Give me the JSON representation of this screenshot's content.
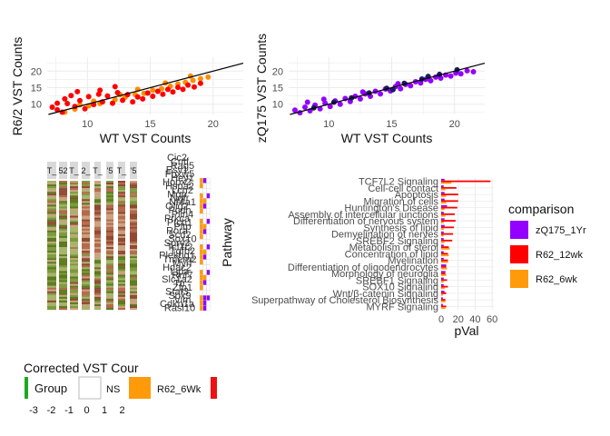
{
  "chart_data": [
    {
      "type": "scatter",
      "xlabel": "WT VST Counts",
      "ylabel": "R6/2 VST Counts",
      "xticks": [
        10,
        15,
        20
      ],
      "yticks": [
        10,
        15,
        20
      ],
      "xlim": [
        6.8,
        22.4
      ],
      "ylim": [
        6.9,
        24.2
      ],
      "reference_line": {
        "slope": 1,
        "intercept": 0
      },
      "series": [
        {
          "color": "#FF8C00",
          "points": [
            [
              8.2,
              7.6
            ],
            [
              9,
              8.5
            ],
            [
              10.1,
              9.5
            ],
            [
              11,
              10.2
            ],
            [
              12.2,
              11.4
            ],
            [
              13,
              12.1
            ],
            [
              13.8,
              12.9
            ],
            [
              14.5,
              13.3
            ],
            [
              15.2,
              14.2
            ],
            [
              15.9,
              14.7
            ],
            [
              16.6,
              15.4
            ],
            [
              17.2,
              16.1
            ],
            [
              17.8,
              16.6
            ],
            [
              18.4,
              17.2
            ],
            [
              19,
              17.7
            ],
            [
              19.6,
              18.2
            ],
            [
              14,
              14.5
            ],
            [
              16.2,
              16.4
            ],
            [
              18.2,
              18.5
            ],
            [
              12.6,
              12.9
            ],
            [
              10.5,
              10.9
            ],
            [
              9.4,
              9.8
            ]
          ]
        },
        {
          "color": "#FF0000",
          "points": [
            [
              7.2,
              9.1
            ],
            [
              7.6,
              8.3
            ],
            [
              8,
              7.6
            ],
            [
              8.4,
              10.2
            ],
            [
              8.7,
              12.6
            ],
            [
              9,
              9.3
            ],
            [
              9.4,
              11.1
            ],
            [
              9.8,
              8.6
            ],
            [
              10.1,
              12.3
            ],
            [
              10.5,
              9.9
            ],
            [
              10.9,
              13
            ],
            [
              11.2,
              10.7
            ],
            [
              11.6,
              12.5
            ],
            [
              12,
              10.3
            ],
            [
              12.4,
              13.5
            ],
            [
              12.8,
              11.2
            ],
            [
              13.2,
              12.9
            ],
            [
              13.6,
              10.7
            ],
            [
              14,
              12.2
            ],
            [
              14.4,
              11.6
            ],
            [
              14.8,
              13.4
            ],
            [
              15.2,
              12.4
            ],
            [
              15.6,
              13.9
            ],
            [
              16,
              13
            ],
            [
              16.4,
              14.5
            ],
            [
              16.8,
              13.7
            ],
            [
              17.2,
              15.1
            ],
            [
              17.6,
              14.5
            ],
            [
              18,
              15.8
            ],
            [
              18.5,
              15.2
            ],
            [
              19,
              16.3
            ],
            [
              7.6,
              10.3
            ],
            [
              8.2,
              11.6
            ],
            [
              9.2,
              13.8
            ],
            [
              11,
              14.2
            ],
            [
              12.2,
              15.3
            ]
          ]
        }
      ]
    },
    {
      "type": "scatter",
      "xlabel": "WT VST Counts",
      "ylabel": "zQ175 VST Counts",
      "xticks": [
        10,
        15,
        20
      ],
      "yticks": [
        10,
        15,
        20
      ],
      "xlim": [
        6.8,
        22.4
      ],
      "ylim": [
        6.9,
        24.2
      ],
      "reference_line": {
        "slope": 1,
        "intercept": 0
      },
      "series": [
        {
          "color": "#9400FF",
          "points": [
            [
              7.3,
              8.2
            ],
            [
              7.7,
              7.4
            ],
            [
              8.1,
              9.1
            ],
            [
              8.5,
              8
            ],
            [
              8.9,
              9.7
            ],
            [
              9.3,
              8.6
            ],
            [
              9.7,
              10.3
            ],
            [
              10.1,
              9.3
            ],
            [
              10.5,
              11
            ],
            [
              10.9,
              10
            ],
            [
              11.3,
              11.7
            ],
            [
              11.7,
              10.8
            ],
            [
              12.1,
              12.4
            ],
            [
              12.5,
              11.6
            ],
            [
              12.9,
              13.1
            ],
            [
              13.3,
              12.4
            ],
            [
              13.7,
              13.9
            ],
            [
              14.1,
              13.1
            ],
            [
              14.5,
              14.6
            ],
            [
              14.9,
              14
            ],
            [
              15.3,
              15.3
            ],
            [
              15.7,
              14.7
            ],
            [
              16.1,
              16
            ],
            [
              16.5,
              15.6
            ],
            [
              16.9,
              16.8
            ],
            [
              17.3,
              16.4
            ],
            [
              17.7,
              17.5
            ],
            [
              18.1,
              17.1
            ],
            [
              18.5,
              18.2
            ],
            [
              18.9,
              17.9
            ],
            [
              19.3,
              18.8
            ],
            [
              19.7,
              18.5
            ],
            [
              20.1,
              19.4
            ],
            [
              20.5,
              19.2
            ],
            [
              21,
              20.1
            ],
            [
              21.5,
              19.8
            ],
            [
              8.3,
              10.6
            ],
            [
              9.6,
              11.5
            ],
            [
              12.7,
              13.7
            ],
            [
              15.5,
              16.2
            ]
          ]
        },
        {
          "color": "#1B1B5E",
          "points": [
            [
              8.8,
              8.9
            ],
            [
              10.4,
              10.6
            ],
            [
              11.8,
              11.9
            ],
            [
              13.2,
              13.4
            ],
            [
              14.6,
              14.8
            ],
            [
              16,
              16.3
            ],
            [
              17.4,
              17.6
            ],
            [
              18.8,
              19
            ],
            [
              20.2,
              20.4
            ],
            [
              15.1,
              14.4
            ],
            [
              17.9,
              18.4
            ]
          ]
        }
      ]
    },
    {
      "type": "heatmap",
      "title": "Corrected VST Cour",
      "column_headers": [
        "T_",
        "52",
        "T_",
        "2_",
        "T_",
        "'5",
        "T_",
        "'5"
      ],
      "row_labels": [
        "Cic2",
        "Cntf",
        "Rag5",
        "Esv1",
        "Fbxw5",
        "Hey1",
        "Hopx2",
        "Hspa2",
        "Lcn2",
        "Mgp",
        "Ngfr",
        "Nr4a1",
        "Olig2",
        "Pcdh",
        "Plin4",
        "Prkca",
        "Ptch1",
        "Pltp",
        "Rora",
        "Scd2",
        "Sox10",
        "Spry2",
        "Tcf7l2",
        "Tgfb2",
        "Plekhg1",
        "Tmem2",
        "Myrf",
        "Hdac2",
        "Lipa",
        "Rnf7",
        "Slc1a2",
        "Ttr",
        "Zfp1",
        "Stat3",
        "Sox9",
        "Vim",
        "Cdkn1a",
        "Rasl10"
      ],
      "legend": {
        "scale_ticks": [
          "-3",
          "-2",
          "-1",
          "0",
          "1",
          "2"
        ],
        "group_label": "Group",
        "entries": [
          {
            "label": "NS",
            "color": "#ffffff"
          },
          {
            "label": "R62_6Wk",
            "color": "#FF9A0A"
          },
          {
            "label": "",
            "color": "#EE1111"
          }
        ]
      },
      "side_label": "Pathway"
    },
    {
      "type": "bar",
      "orientation": "horizontal",
      "categories": [
        "TCF7L2 Signaling",
        "Cell-cell contact",
        "Apoptosis",
        "Migration of cells",
        "Huntington's Disease",
        "Assembly of intercellular junctions",
        "Differentiation of nervous system",
        "Synthesis of lipid",
        "Demyelination of nerves",
        "SREBF2 Signaling",
        "Metabolism of sterol",
        "Concentration of lipid",
        "Myelination",
        "Differentiation of oligodendrocytes",
        "Morphology of neuroglia",
        "SREBF1 Signaling",
        "SOX10 Signaling",
        "Wnt/β-catenin Signaling",
        "Superpathway of Cholesterol Biosynthesis",
        "MYRF Signaling"
      ],
      "series": [
        {
          "name": "zQ175_1Yr",
          "color": "#9400FF",
          "values": [
            4,
            3,
            4,
            4,
            7,
            3,
            4,
            4,
            3,
            3,
            3,
            3,
            3,
            6,
            5,
            3,
            3,
            4,
            2,
            2
          ]
        },
        {
          "name": "R62_12wk",
          "color": "#FF0000",
          "values": [
            58,
            18,
            20,
            20,
            19,
            16,
            17,
            15,
            14,
            13,
            9,
            8,
            8,
            6,
            5,
            7,
            8,
            6,
            5,
            6
          ]
        },
        {
          "name": "R62_6wk",
          "color": "#FF9A0A",
          "values": [
            12,
            5,
            6,
            6,
            4,
            5,
            3,
            3,
            3,
            4,
            10,
            9,
            8,
            7,
            6,
            3,
            4,
            2,
            5,
            5
          ]
        }
      ],
      "xlabel": "pVal",
      "ylabel": "Pathway",
      "xticks": [
        0,
        20,
        40,
        60
      ],
      "xlim": [
        0,
        62
      ],
      "legend_title": "comparison",
      "legend_position": "right"
    }
  ]
}
